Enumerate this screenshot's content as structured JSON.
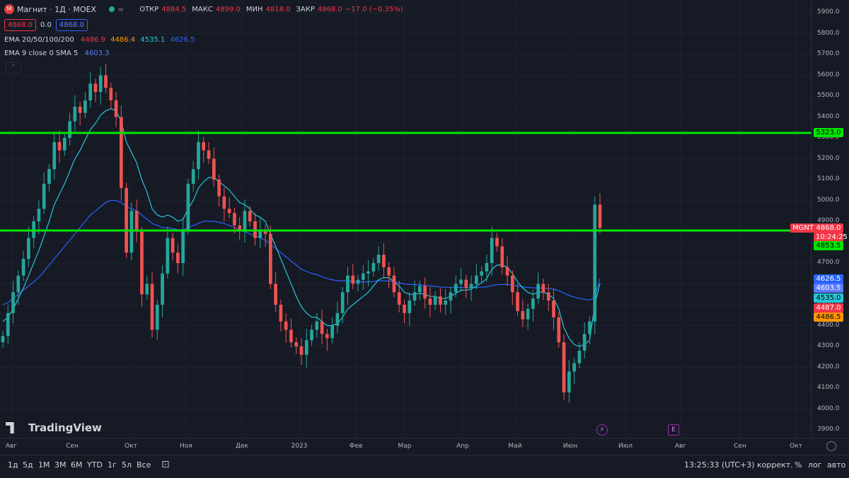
{
  "header": {
    "symbol_icon": "magnit-logo-icon",
    "title": "Магнит · 1Д · MOEX",
    "open_label": "ОТКР",
    "open": "4884.5",
    "high_label": "МАКС",
    "high": "4899.0",
    "low_label": "МИН",
    "low": "4818.0",
    "close_label": "ЗАКР",
    "close": "4868.0",
    "change": "−17.0 (−0.35%)",
    "sell_price": "4868.0",
    "spread": "0.0",
    "buy_price": "4868.0"
  },
  "indicators": {
    "ema_name": "EMA 20/50/100/200",
    "ema20": "4486.9",
    "ema50": "4486.4",
    "ema100": "4535.1",
    "ema200": "4626.5",
    "ema9_name": "EMA 9 close 0 SMA 5",
    "ema9": "4603.3"
  },
  "axis_tags": {
    "level_top": "5323.0",
    "symbol": "MGNT",
    "last_price": "4868.0",
    "countdown": "10:24:25",
    "level_bottom": "4853.5",
    "t4626": "4626.5",
    "t4603": "4603.5",
    "t4535": "4535.0",
    "t4487": "4487.0",
    "t4486": "4486.5"
  },
  "colors": {
    "up": "#26a69a",
    "down": "#ef5350",
    "level": "#00e600",
    "ema_red": "#f23645",
    "ema_orange": "#ff9800",
    "ema_cyan": "#26c6da",
    "ema_blue": "#2962ff"
  },
  "chart_data": {
    "type": "candlestick",
    "price_axis": [
      3900,
      4000,
      4100,
      4200,
      4300,
      4400,
      4500,
      4600,
      4700,
      4800,
      4900,
      5000,
      5100,
      5200,
      5300,
      5400,
      5500,
      5600,
      5700,
      5800,
      5900
    ],
    "price_axis_labels": [
      "3900.0",
      "4000.0",
      "4100.0",
      "4200.0",
      "4300.0",
      "4400.0",
      "4500.0",
      "4600.0",
      "4700.0",
      "4800.0",
      "4900.0",
      "5000.0",
      "5100.0",
      "5200.0",
      "5300.0",
      "5400.0",
      "5500.0",
      "5600.0",
      "5700.0",
      "5800.0",
      "5900.0"
    ],
    "time_labels": [
      "Авг",
      "Сен",
      "Окт",
      "Ноя",
      "Дек",
      "2023",
      "Фев",
      "Мар",
      "Апр",
      "Май",
      "Июн",
      "Июл",
      "Авг",
      "Сен",
      "Окт"
    ],
    "horizontal_levels": [
      5323,
      4853.5
    ],
    "ylim": [
      3880,
      5950
    ],
    "series_close": [
      4350,
      4460,
      4560,
      4640,
      4720,
      4820,
      4900,
      4960,
      5080,
      5150,
      5280,
      5240,
      5300,
      5380,
      5450,
      5420,
      5480,
      5560,
      5520,
      5600,
      5540,
      5480,
      5400,
      5060,
      4750,
      4950,
      4850,
      4550,
      4600,
      4380,
      4500,
      4650,
      4820,
      4750,
      4700,
      4860,
      5080,
      5150,
      5280,
      5240,
      5200,
      5100,
      5020,
      4960,
      4940,
      4880,
      4860,
      4950,
      4900,
      4820,
      4860,
      4840,
      4600,
      4500,
      4420,
      4380,
      4320,
      4300,
      4260,
      4330,
      4380,
      4420,
      4360,
      4340,
      4400,
      4460,
      4560,
      4640,
      4600,
      4620,
      4650,
      4660,
      4700,
      4740,
      4680,
      4640,
      4560,
      4500,
      4460,
      4520,
      4560,
      4590,
      4530,
      4500,
      4540,
      4500,
      4520,
      4560,
      4600,
      4620,
      4580,
      4600,
      4640,
      4660,
      4700,
      4820,
      4780,
      4680,
      4640,
      4560,
      4470,
      4430,
      4480,
      4530,
      4600,
      4560,
      4520,
      4440,
      4320,
      4080,
      4180,
      4220,
      4280,
      4360,
      4420,
      4980,
      4868
    ],
    "ema_short": [
      4420,
      4440,
      4480,
      4530,
      4580,
      4640,
      4700,
      4760,
      4830,
      4900,
      4980,
      5030,
      5080,
      5140,
      5200,
      5240,
      5290,
      5340,
      5370,
      5410,
      5430,
      5440,
      5430,
      5380,
      5280,
      5230,
      5180,
      5100,
      5040,
      4960,
      4930,
      4920,
      4930,
      4920,
      4900,
      4910,
      4960,
      5000,
      5060,
      5090,
      5110,
      5110,
      5090,
      5070,
      5050,
      5020,
      4990,
      4980,
      4960,
      4930,
      4920,
      4900,
      4840,
      4780,
      4720,
      4660,
      4600,
      4540,
      4490,
      4460,
      4440,
      4440,
      4420,
      4400,
      4400,
      4410,
      4440,
      4480,
      4500,
      4520,
      4540,
      4560,
      4590,
      4620,
      4630,
      4630,
      4610,
      4590,
      4560,
      4550,
      4550,
      4555,
      4550,
      4540,
      4540,
      4530,
      4530,
      4540,
      4555,
      4570,
      4570,
      4575,
      4590,
      4605,
      4625,
      4670,
      4690,
      4690,
      4680,
      4650,
      4610,
      4580,
      4560,
      4550,
      4560,
      4560,
      4550,
      4530,
      4480,
      4390,
      4340,
      4310,
      4300,
      4310,
      4330,
      4500,
      4603
    ],
    "ema_long": [
      4500,
      4510,
      4530,
      4550,
      4570,
      4590,
      4610,
      4630,
      4660,
      4690,
      4720,
      4750,
      4780,
      4810,
      4840,
      4870,
      4900,
      4930,
      4950,
      4970,
      4990,
      5000,
      5000,
      4990,
      4970,
      4960,
      4950,
      4930,
      4910,
      4890,
      4880,
      4870,
      4870,
      4865,
      4860,
      4860,
      4870,
      4880,
      4890,
      4900,
      4900,
      4900,
      4895,
      4890,
      4880,
      4870,
      4860,
      4850,
      4840,
      4830,
      4820,
      4810,
      4790,
      4770,
      4750,
      4730,
      4710,
      4690,
      4670,
      4660,
      4650,
      4645,
      4635,
      4625,
      4620,
      4615,
      4615,
      4615,
      4612,
      4610,
      4610,
      4610,
      4612,
      4615,
      4615,
      4614,
      4610,
      4605,
      4600,
      4598,
      4596,
      4595,
      4592,
      4590,
      4588,
      4585,
      4584,
      4583,
      4583,
      4583,
      4582,
      4582,
      4583,
      4584,
      4586,
      4592,
      4596,
      4597,
      4597,
      4594,
      4590,
      4586,
      4583,
      4581,
      4581,
      4580,
      4578,
      4575,
      4568,
      4555,
      4545,
      4537,
      4530,
      4526,
      4523,
      4535,
      4626
    ]
  }
}
